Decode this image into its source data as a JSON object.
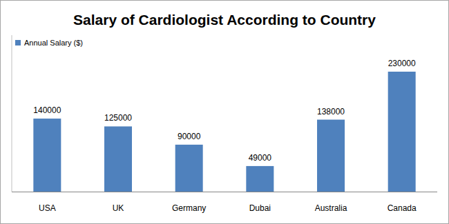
{
  "chart_data": {
    "type": "bar",
    "title": "Salary of Cardiologist According to Country",
    "categories": [
      "USA",
      "UK",
      "Germany",
      "Dubai",
      "Australia",
      "Canada"
    ],
    "series": [
      {
        "name": "Annual Salary ($)",
        "color": "#4f81bd",
        "values": [
          140000,
          125000,
          90000,
          49000,
          138000,
          230000
        ]
      }
    ],
    "ylim": [
      0,
      300000
    ],
    "grid": false,
    "legend": "top-left",
    "data_labels": true,
    "tick_labels": "x"
  }
}
